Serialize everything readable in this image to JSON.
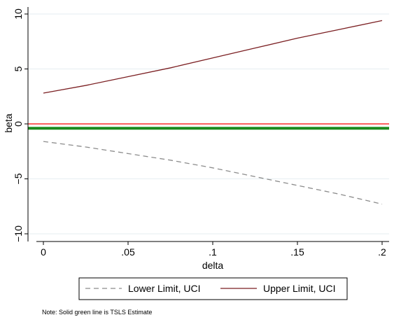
{
  "colors": {
    "background": "#ffffff",
    "grid": "#e6eef1",
    "lower_series": "#8c8c8c",
    "upper_series": "#7b1f22",
    "zero_line": "#ff0000",
    "estimate_line": "#1f8a1f",
    "axis": "#000000"
  },
  "chart_data": {
    "type": "line",
    "xlabel": "delta",
    "ylabel": "beta",
    "xlim": [
      0,
      0.2
    ],
    "ylim": [
      -10,
      10
    ],
    "x_ticks": [
      0,
      0.05,
      0.1,
      0.15,
      0.2
    ],
    "x_tick_labels": [
      "0",
      ".05",
      ".1",
      ".15",
      ".2"
    ],
    "y_ticks": [
      -10,
      -5,
      0,
      5,
      10
    ],
    "y_tick_labels": [
      "−10",
      "−5",
      "0",
      "5",
      "10"
    ],
    "grid": "horizontal",
    "legend_position": "bottom",
    "x": [
      0,
      0.025,
      0.05,
      0.075,
      0.1,
      0.125,
      0.15,
      0.175,
      0.2
    ],
    "series": [
      {
        "name": "Lower Limit, UCI",
        "style": "dashed",
        "color": "#8c8c8c",
        "values": [
          -1.6,
          -2.1,
          -2.7,
          -3.3,
          -4.0,
          -4.8,
          -5.6,
          -6.4,
          -7.3
        ]
      },
      {
        "name": "Upper Limit, UCI",
        "style": "solid",
        "color": "#7b1f22",
        "values": [
          2.8,
          3.5,
          4.3,
          5.1,
          6.0,
          6.9,
          7.8,
          8.6,
          9.4
        ]
      }
    ],
    "reference_lines": [
      {
        "y": 0,
        "color": "#ff0000",
        "style": "thin"
      },
      {
        "y": -0.4,
        "color": "#1f8a1f",
        "style": "thick"
      }
    ],
    "note": "Note: Solid green line is TSLS Estimate"
  }
}
